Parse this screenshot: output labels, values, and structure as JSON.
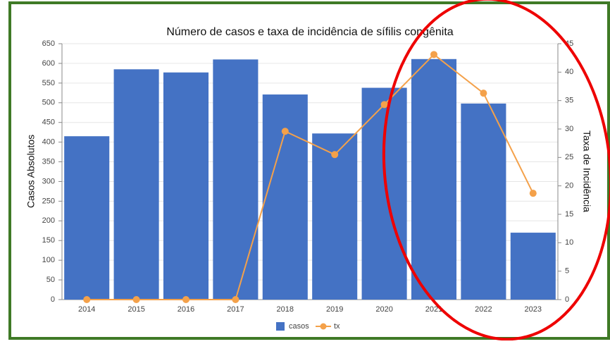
{
  "chart_data": {
    "type": "bar",
    "title": "Número de casos e taxa de incidência de sífilis congênita",
    "ylabel": "Casos Absolutos",
    "y2label": "Taxa de Incidência",
    "categories": [
      "2014",
      "2015",
      "2016",
      "2017",
      "2018",
      "2019",
      "2020",
      "2021",
      "2022",
      "2023"
    ],
    "series": [
      {
        "name": "casos",
        "color": "#4472c4",
        "values": [
          415,
          585,
          577,
          610,
          521,
          422,
          538,
          611,
          498,
          170
        ]
      },
      {
        "name": "tx",
        "color": "#f4a14a",
        "axis": "y2",
        "values": [
          0,
          0,
          0,
          0,
          29.6,
          25.5,
          34.3,
          43.1,
          36.3,
          18.7
        ]
      }
    ],
    "ylim": [
      0,
      650
    ],
    "yticks": [
      0,
      50,
      100,
      150,
      200,
      250,
      300,
      350,
      400,
      450,
      500,
      550,
      600,
      650
    ],
    "y2lim": [
      0,
      45
    ],
    "y2ticks": [
      0,
      5,
      10,
      15,
      20,
      25,
      30,
      35,
      40,
      45
    ],
    "grid": true
  }
}
